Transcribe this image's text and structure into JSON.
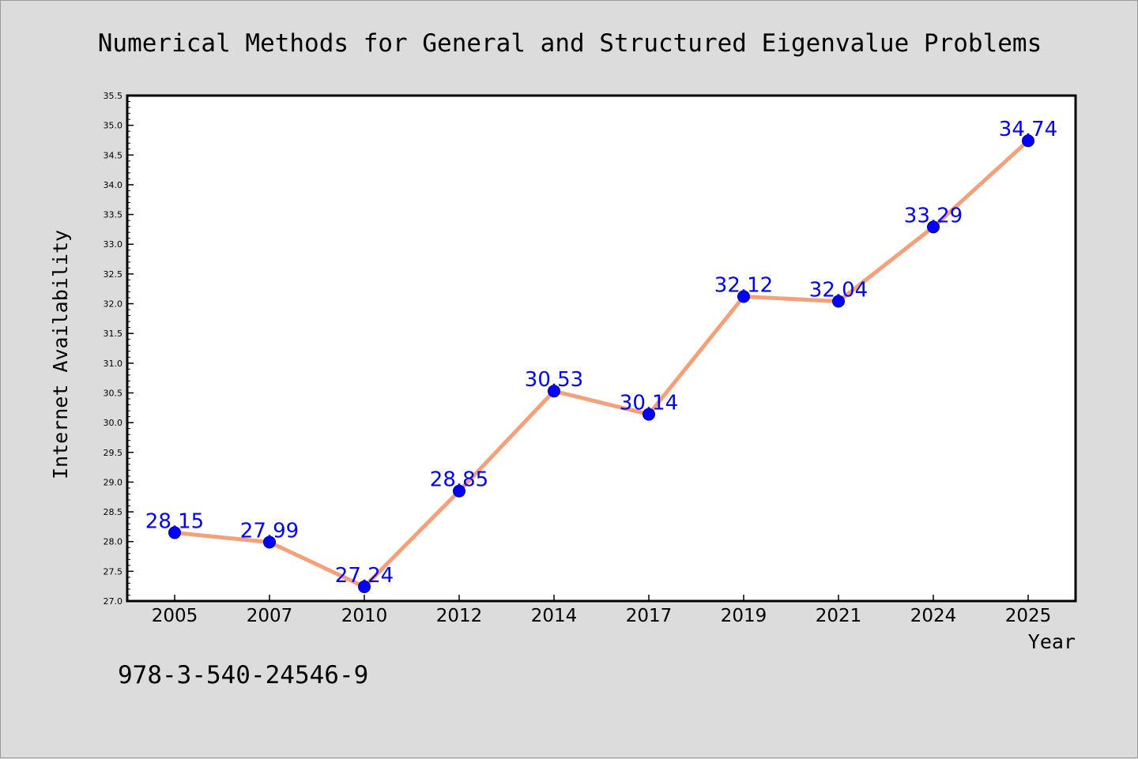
{
  "footer": {
    "isbn": "978-3-540-24546-9"
  },
  "colors": {
    "background": "#dcdcdc",
    "plot_background": "#ffffff",
    "line": "#f4a07a",
    "marker": "#0000ff",
    "data_label": "#0000ff",
    "axis": "#000000"
  },
  "chart_data": {
    "type": "line",
    "title": "Numerical Methods for General and Structured Eigenvalue Problems",
    "xlabel": "Year",
    "ylabel": "Internet Availability",
    "categories": [
      "2005",
      "2007",
      "2010",
      "2012",
      "2014",
      "2017",
      "2019",
      "2021",
      "2024",
      "2025"
    ],
    "series": [
      {
        "values": [
          28.15,
          27.99,
          27.24,
          28.85,
          30.53,
          30.14,
          32.12,
          32.04,
          33.29,
          34.74
        ],
        "data_labels": [
          "28.15",
          "27.99",
          "27.24",
          "28.85",
          "30.53",
          "30.14",
          "32.12",
          "32.04",
          "33.29",
          "34.74"
        ]
      }
    ],
    "ylim": [
      27.0,
      35.5
    ],
    "yticks": [
      "27.0",
      "27.5",
      "28.0",
      "28.5",
      "29.0",
      "29.5",
      "30.0",
      "30.5",
      "31.0",
      "31.5",
      "32.0",
      "32.5",
      "33.0",
      "33.5",
      "34.0",
      "34.5",
      "35.0",
      "35.5"
    ],
    "grid": false,
    "legend": "none",
    "markers": true
  }
}
